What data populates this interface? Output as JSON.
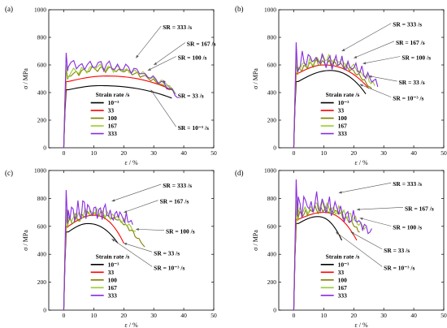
{
  "chart_data": [
    {
      "type": "line",
      "panel_label": "(a)",
      "xlabel": "ε / %",
      "ylabel": "σ / MPa",
      "xlim": [
        -5,
        50
      ],
      "ylim": [
        0,
        1000
      ],
      "xticks": [
        0,
        10,
        20,
        30,
        40,
        50
      ],
      "yticks": [
        0,
        200,
        400,
        600,
        800,
        1000
      ],
      "legend_title": "Strain rate /s",
      "legend_position": "lower-center",
      "series": [
        {
          "name": "10⁻³",
          "color": "#000000",
          "yield": 420,
          "peak": 450,
          "peak_strain": 12,
          "final_stress": 360,
          "end_strain": 36,
          "osc": 0,
          "seed": 1
        },
        {
          "name": "33",
          "color": "#ff0000",
          "yield": 480,
          "peak": 520,
          "peak_strain": 14,
          "final_stress": 420,
          "end_strain": 36,
          "osc": 0,
          "seed": 2
        },
        {
          "name": "100",
          "color": "#808000",
          "yield": 520,
          "peak": 570,
          "peak_strain": 12,
          "final_stress": 400,
          "end_strain": 37,
          "osc": 30,
          "seed": 3
        },
        {
          "name": "167",
          "color": "#9acd32",
          "yield": 540,
          "peak": 580,
          "peak_strain": 12,
          "final_stress": 420,
          "end_strain": 37,
          "osc": 40,
          "seed": 4
        },
        {
          "name": "333",
          "color": "#8a2be2",
          "yield": 600,
          "peak": 600,
          "peak_strain": 10,
          "final_stress": 380,
          "end_strain": 38,
          "osc": 55,
          "seed": 5
        }
      ],
      "annotations": [
        {
          "text": "SR = 333 /s",
          "x": 33,
          "y": 870,
          "target_x": 24,
          "target_y": 650
        },
        {
          "text": "SR = 167 /s",
          "x": 41,
          "y": 750,
          "target_x": 30,
          "target_y": 600
        },
        {
          "text": "SR = 100 /s",
          "x": 38,
          "y": 650,
          "target_x": 28,
          "target_y": 560
        },
        {
          "text": "SR = 33 /s",
          "x": 38,
          "y": 375,
          "target_x": 33,
          "target_y": 490
        },
        {
          "text": "SR = 10⁻³ /s",
          "x": 38,
          "y": 140,
          "target_x": 29,
          "target_y": 420
        }
      ]
    },
    {
      "type": "line",
      "panel_label": "(b)",
      "xlabel": "ε / %",
      "ylabel": "σ / MPa",
      "xlim": [
        -5,
        50
      ],
      "ylim": [
        0,
        1000
      ],
      "xticks": [
        0,
        10,
        20,
        30,
        40,
        50
      ],
      "yticks": [
        0,
        200,
        400,
        600,
        800,
        1000
      ],
      "legend_title": "Strain rate /s",
      "legend_position": "lower-center",
      "series": [
        {
          "name": "10⁻³",
          "color": "#000000",
          "yield": 480,
          "peak": 560,
          "peak_strain": 12,
          "final_stress": 390,
          "end_strain": 24,
          "osc": 0,
          "seed": 6
        },
        {
          "name": "33",
          "color": "#ff0000",
          "yield": 540,
          "peak": 600,
          "peak_strain": 10,
          "final_stress": 430,
          "end_strain": 25,
          "osc": 0,
          "seed": 7
        },
        {
          "name": "100",
          "color": "#808000",
          "yield": 560,
          "peak": 620,
          "peak_strain": 10,
          "final_stress": 420,
          "end_strain": 26,
          "osc": 40,
          "seed": 8
        },
        {
          "name": "167",
          "color": "#9acd32",
          "yield": 580,
          "peak": 640,
          "peak_strain": 10,
          "final_stress": 450,
          "end_strain": 27,
          "osc": 50,
          "seed": 9
        },
        {
          "name": "333",
          "color": "#8a2be2",
          "yield": 620,
          "peak": 640,
          "peak_strain": 8,
          "final_stress": 460,
          "end_strain": 28,
          "osc": 90,
          "seed": 10
        }
      ],
      "annotations": [
        {
          "text": "SR = 333 /s",
          "x": 33,
          "y": 890,
          "target_x": 16,
          "target_y": 700
        },
        {
          "text": "SR = 167 /s",
          "x": 34,
          "y": 760,
          "target_x": 20,
          "target_y": 650
        },
        {
          "text": "SR = 100 /s",
          "x": 36,
          "y": 650,
          "target_x": 23,
          "target_y": 610
        },
        {
          "text": "SR = 33 /s",
          "x": 35,
          "y": 470,
          "target_x": 25,
          "target_y": 520
        },
        {
          "text": "SR = 10⁻³ /s",
          "x": 33,
          "y": 355,
          "target_x": 22,
          "target_y": 460
        }
      ]
    },
    {
      "type": "line",
      "panel_label": "(c)",
      "xlabel": "ε / %",
      "ylabel": "σ / MPa",
      "xlim": [
        -5,
        50
      ],
      "ylim": [
        0,
        1000
      ],
      "xticks": [
        0,
        10,
        20,
        30,
        40,
        50
      ],
      "yticks": [
        0,
        200,
        400,
        600,
        800,
        1000
      ],
      "legend_title": "Strain rate /s",
      "legend_position": "lower-center",
      "series": [
        {
          "name": "10⁻³",
          "color": "#000000",
          "yield": 560,
          "peak": 620,
          "peak_strain": 8,
          "final_stress": 480,
          "end_strain": 18,
          "osc": 0,
          "seed": 11
        },
        {
          "name": "33",
          "color": "#ff0000",
          "yield": 600,
          "peak": 680,
          "peak_strain": 10,
          "final_stress": 480,
          "end_strain": 20,
          "osc": 0,
          "seed": 12
        },
        {
          "name": "100",
          "color": "#808000",
          "yield": 620,
          "peak": 690,
          "peak_strain": 10,
          "final_stress": 450,
          "end_strain": 27,
          "osc": 40,
          "seed": 13
        },
        {
          "name": "167",
          "color": "#9acd32",
          "yield": 640,
          "peak": 700,
          "peak_strain": 10,
          "final_stress": 560,
          "end_strain": 24,
          "osc": 50,
          "seed": 14
        },
        {
          "name": "333",
          "color": "#8a2be2",
          "yield": 700,
          "peak": 720,
          "peak_strain": 8,
          "final_stress": 620,
          "end_strain": 23,
          "osc": 100,
          "seed": 15
        }
      ],
      "annotations": [
        {
          "text": "SR = 333 /s",
          "x": 33,
          "y": 890,
          "target_x": 16,
          "target_y": 780
        },
        {
          "text": "SR = 167 /s",
          "x": 32,
          "y": 775,
          "target_x": 20,
          "target_y": 700
        },
        {
          "text": "SR = 100 /s",
          "x": 34,
          "y": 560,
          "target_x": 24,
          "target_y": 580
        },
        {
          "text": "SR = 33 /s",
          "x": 30,
          "y": 405,
          "target_x": 20,
          "target_y": 480
        },
        {
          "text": "SR = 10⁻³ /s",
          "x": 30,
          "y": 300,
          "target_x": 16,
          "target_y": 510
        }
      ]
    },
    {
      "type": "line",
      "panel_label": "(d)",
      "xlabel": "ε / %",
      "ylabel": "σ / MPa",
      "xlim": [
        -5,
        50
      ],
      "ylim": [
        0,
        1000
      ],
      "xticks": [
        0,
        10,
        20,
        30,
        40,
        50
      ],
      "yticks": [
        0,
        200,
        400,
        600,
        800,
        1000
      ],
      "legend_title": "Strain rate /s",
      "legend_position": "lower-center",
      "series": [
        {
          "name": "10⁻³",
          "color": "#000000",
          "yield": 620,
          "peak": 670,
          "peak_strain": 8,
          "final_stress": 500,
          "end_strain": 16,
          "osc": 0,
          "seed": 16
        },
        {
          "name": "33",
          "color": "#ff0000",
          "yield": 650,
          "peak": 700,
          "peak_strain": 10,
          "final_stress": 500,
          "end_strain": 21,
          "osc": 0,
          "seed": 17
        },
        {
          "name": "100",
          "color": "#808000",
          "yield": 670,
          "peak": 720,
          "peak_strain": 9,
          "final_stress": 560,
          "end_strain": 22,
          "osc": 40,
          "seed": 18
        },
        {
          "name": "167",
          "color": "#9acd32",
          "yield": 690,
          "peak": 740,
          "peak_strain": 8,
          "final_stress": 580,
          "end_strain": 24,
          "osc": 60,
          "seed": 19
        },
        {
          "name": "333",
          "color": "#8a2be2",
          "yield": 760,
          "peak": 760,
          "peak_strain": 6,
          "final_stress": 540,
          "end_strain": 26,
          "osc": 110,
          "seed": 20
        }
      ],
      "annotations": [
        {
          "text": "SR = 333 /s",
          "x": 33,
          "y": 900,
          "target_x": 15,
          "target_y": 840
        },
        {
          "text": "SR = 167 /s",
          "x": 37,
          "y": 725,
          "target_x": 21,
          "target_y": 720
        },
        {
          "text": "SR = 100 /s",
          "x": 33,
          "y": 590,
          "target_x": 22,
          "target_y": 660
        },
        {
          "text": "SR = 33 /s",
          "x": 30,
          "y": 425,
          "target_x": 19,
          "target_y": 560
        },
        {
          "text": "SR = 10⁻³ /s",
          "x": 30,
          "y": 300,
          "target_x": 14,
          "target_y": 560
        }
      ]
    }
  ]
}
